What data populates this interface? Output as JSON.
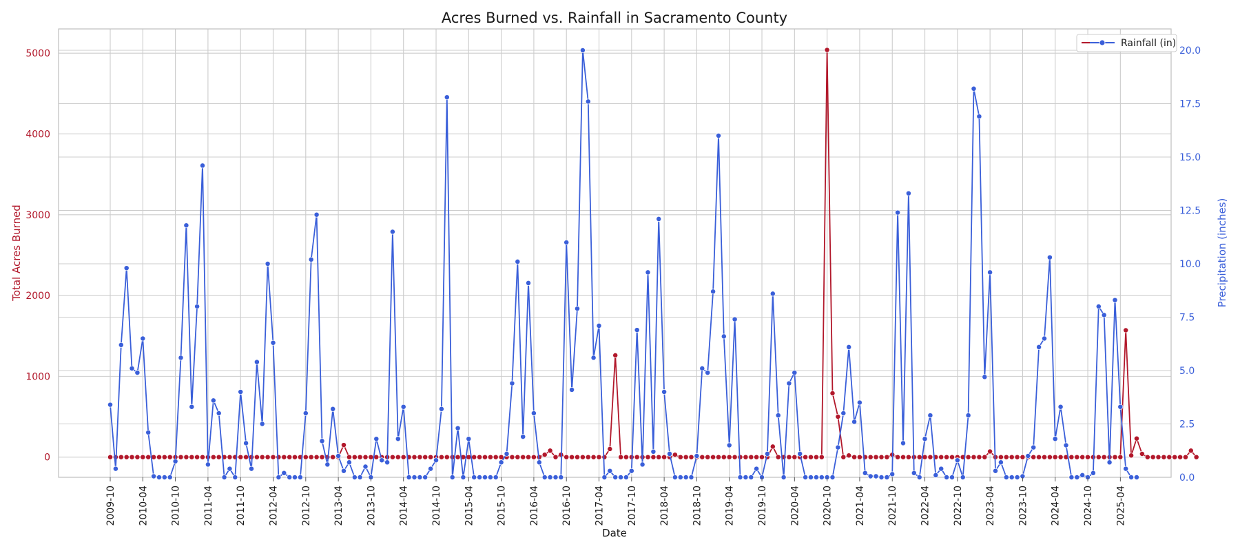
{
  "chart_data": {
    "type": "line",
    "title": "Acres Burned vs. Rainfall in Sacramento County",
    "xlabel": "Date",
    "ylabel_left": "Total Acres Burned",
    "ylabel_right": "Precipitation (inches)",
    "ylim_left": [
      -250,
      5300
    ],
    "ylim_right": [
      0,
      21
    ],
    "yticks_left": [
      0,
      1000,
      2000,
      3000,
      4000,
      5000
    ],
    "yticks_right": [
      "0.0",
      "2.5",
      "5.0",
      "7.5",
      "10.0",
      "12.5",
      "15.0",
      "17.5",
      "20.0"
    ],
    "xticks": [
      "2009-10",
      "2010-04",
      "2010-10",
      "2011-04",
      "2011-10",
      "2012-04",
      "2012-10",
      "2013-04",
      "2013-10",
      "2014-04",
      "2014-10",
      "2015-04",
      "2015-10",
      "2016-04",
      "2016-10",
      "2017-04",
      "2017-10",
      "2018-04",
      "2018-10",
      "2019-04",
      "2019-10",
      "2020-04",
      "2020-10",
      "2021-04",
      "2021-10",
      "2022-04",
      "2022-10",
      "2023-04",
      "2023-10",
      "2024-04",
      "2024-10",
      "2025-04"
    ],
    "x_start": "2009-10",
    "x_end": "2025-07",
    "grid": true,
    "legend_position": "top-right",
    "legend": [
      "Rainfall (in)"
    ],
    "colors": {
      "acres": "#b2182b",
      "rain": "#3a5fd9",
      "grid": "#cccccc",
      "frame": "#bdbdbd"
    },
    "series": [
      {
        "axis": "left",
        "values": [
          0,
          0,
          0,
          0,
          0,
          0,
          0,
          0,
          0,
          0,
          0,
          0,
          0,
          0,
          0,
          0,
          0,
          0,
          0,
          0,
          0,
          0,
          0,
          0,
          0,
          0,
          0,
          0,
          0,
          0,
          0,
          0,
          0,
          0,
          0,
          0,
          0,
          0,
          0,
          0,
          0,
          0,
          0,
          150,
          0,
          0,
          0,
          0,
          0,
          0,
          0,
          0,
          0,
          0,
          0,
          0,
          0,
          0,
          0,
          0,
          0,
          0,
          0,
          0,
          0,
          0,
          0,
          0,
          0,
          0,
          0,
          0,
          0,
          0,
          0,
          0,
          0,
          0,
          0,
          0,
          30,
          80,
          0,
          30,
          0,
          0,
          0,
          0,
          0,
          0,
          0,
          0,
          100,
          1260,
          0,
          0,
          0,
          0,
          0,
          0,
          0,
          0,
          0,
          0,
          30,
          0,
          0,
          0,
          0,
          0,
          0,
          0,
          0,
          0,
          0,
          0,
          0,
          0,
          0,
          0,
          0,
          0,
          130,
          0,
          0,
          0,
          0,
          0,
          0,
          0,
          0,
          0,
          5040,
          790,
          500,
          0,
          20,
          0,
          0,
          0,
          0,
          0,
          0,
          0,
          30,
          0,
          0,
          0,
          0,
          0,
          0,
          0,
          0,
          0,
          0,
          0,
          0,
          0,
          0,
          0,
          0,
          0,
          70,
          0,
          0,
          0,
          0,
          0,
          0,
          0,
          0,
          0,
          0,
          0,
          0,
          0,
          0,
          0,
          0,
          0,
          0,
          0,
          0,
          0,
          0,
          0,
          0,
          1570,
          20,
          230,
          40,
          0,
          0,
          0,
          0,
          0,
          0,
          0,
          0,
          80,
          0
        ]
      },
      {
        "name": "Rainfall (in)",
        "axis": "right",
        "values": [
          3.4,
          0.4,
          6.2,
          9.8,
          5.1,
          4.9,
          6.5,
          2.1,
          0.05,
          0,
          0,
          0,
          0.75,
          5.6,
          11.8,
          3.3,
          8.0,
          14.6,
          0.6,
          3.6,
          3.0,
          0,
          0.4,
          0,
          4.0,
          1.6,
          0.4,
          5.4,
          2.5,
          10.0,
          6.3,
          0,
          0.2,
          0,
          0,
          0,
          3.0,
          10.2,
          12.3,
          1.7,
          0.6,
          3.2,
          1.0,
          0.3,
          0.7,
          0,
          0,
          0.5,
          0,
          1.8,
          0.8,
          0.7,
          11.5,
          1.8,
          3.3,
          0,
          0,
          0,
          0,
          0.4,
          0.8,
          3.2,
          17.8,
          0,
          2.3,
          0,
          1.8,
          0,
          0,
          0,
          0,
          0,
          0.7,
          1.1,
          4.4,
          10.1,
          1.9,
          9.1,
          3.0,
          0.7,
          0,
          0,
          0,
          0,
          11.0,
          4.1,
          7.9,
          20.0,
          17.6,
          5.6,
          7.1,
          0,
          0.3,
          0,
          0,
          0,
          0.3,
          6.9,
          0.6,
          9.6,
          1.2,
          12.1,
          4.0,
          1.1,
          0,
          0,
          0,
          0,
          1.0,
          5.1,
          4.9,
          8.7,
          16.0,
          6.6,
          1.5,
          7.4,
          0,
          0,
          0,
          0.4,
          0,
          1.1,
          8.6,
          2.9,
          0,
          4.4,
          4.9,
          1.1,
          0,
          0,
          0,
          0,
          0,
          0,
          1.4,
          3.0,
          6.1,
          2.6,
          3.5,
          0.2,
          0.05,
          0.05,
          0,
          0,
          0.15,
          12.4,
          1.6,
          13.3,
          0.2,
          0,
          1.8,
          2.9,
          0.1,
          0.4,
          0,
          0,
          0.8,
          0,
          2.9,
          18.2,
          16.9,
          4.7,
          9.6,
          0.3,
          0.7,
          0,
          0,
          0,
          0.05,
          1.0,
          1.4,
          6.1,
          6.5,
          10.3,
          1.8,
          3.3,
          1.5,
          0,
          0,
          0.1,
          0,
          0.2,
          8.0,
          7.6,
          0.7,
          8.3,
          3.3,
          0.4,
          0,
          0
        ]
      }
    ]
  }
}
